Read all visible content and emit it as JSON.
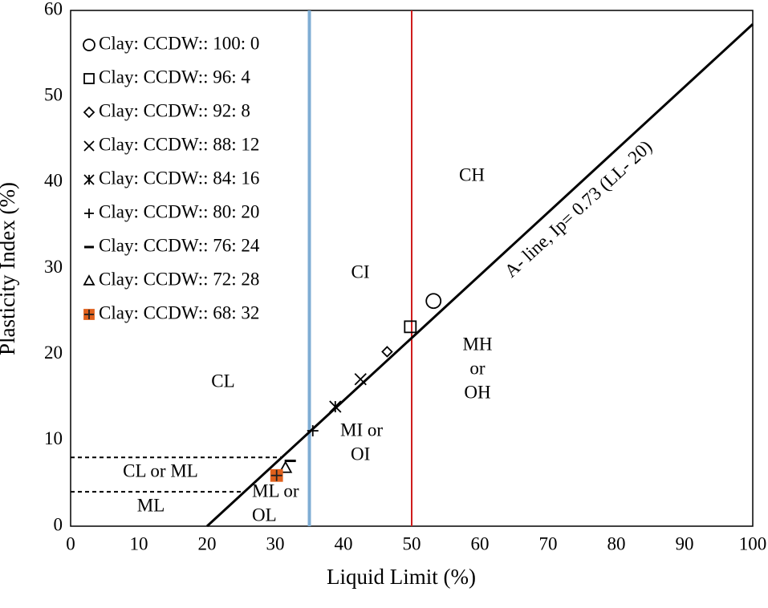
{
  "chart_data": {
    "type": "scatter",
    "xlabel": "Liquid Limit (%)",
    "ylabel": "Plasticity Index (%)",
    "xlim": [
      0,
      100
    ],
    "ylim": [
      0,
      60
    ],
    "xticks": [
      0,
      10,
      20,
      30,
      40,
      50,
      60,
      70,
      80,
      90,
      100
    ],
    "yticks": [
      0,
      10,
      20,
      30,
      40,
      50,
      60
    ],
    "series": [
      {
        "name": "Clay: CCDW:: 100: 0",
        "marker": "circle",
        "color": "#000000",
        "x": [
          53.2
        ],
        "values": [
          26.2
        ]
      },
      {
        "name": "Clay: CCDW:: 96: 4",
        "marker": "square",
        "color": "#000000",
        "x": [
          49.8
        ],
        "values": [
          23.2
        ]
      },
      {
        "name": "Clay: CCDW:: 92: 8",
        "marker": "diamond",
        "color": "#000000",
        "x": [
          46.4
        ],
        "values": [
          20.3
        ]
      },
      {
        "name": "Clay: CCDW:: 88: 12",
        "marker": "x",
        "color": "#000000",
        "x": [
          42.5
        ],
        "values": [
          17.1
        ]
      },
      {
        "name": "Clay: CCDW:: 84: 16",
        "marker": "star",
        "color": "#000000",
        "x": [
          38.8
        ],
        "values": [
          13.9
        ]
      },
      {
        "name": "Clay: CCDW:: 80: 20",
        "marker": "plus",
        "color": "#000000",
        "x": [
          35.5
        ],
        "values": [
          11.1
        ]
      },
      {
        "name": "Clay: CCDW:: 76: 24",
        "marker": "dash",
        "color": "#000000",
        "x": [
          32.2
        ],
        "values": [
          7.6
        ]
      },
      {
        "name": "Clay: CCDW:: 72: 28",
        "marker": "triangle",
        "color": "#000000",
        "x": [
          31.5
        ],
        "values": [
          6.8
        ]
      },
      {
        "name": "Clay: CCDW:: 68: 32",
        "marker": "filled-square",
        "color": "#e0601c",
        "x": [
          30.2
        ],
        "values": [
          5.9
        ]
      }
    ],
    "a_line": {
      "label": "A- line, Ip= 0.73 (LL- 20)",
      "x": [
        20,
        100
      ],
      "y": [
        0,
        58.4
      ]
    },
    "vlines": [
      {
        "x": 35,
        "color": "#7fadd4"
      },
      {
        "x": 50,
        "color": "#d01c1c"
      }
    ],
    "hlines": [
      {
        "y": 8,
        "x": [
          0,
          30.96
        ]
      },
      {
        "y": 4,
        "x": [
          0,
          25.48
        ]
      }
    ],
    "zone_labels": [
      [
        "CL"
      ],
      [
        "CI"
      ],
      [
        "CH"
      ],
      [
        "MH",
        "or",
        "OH"
      ],
      [
        "MI or",
        "OI"
      ],
      [
        "CL or ML"
      ],
      [
        "ML"
      ],
      [
        "ML or",
        "OL"
      ]
    ]
  }
}
